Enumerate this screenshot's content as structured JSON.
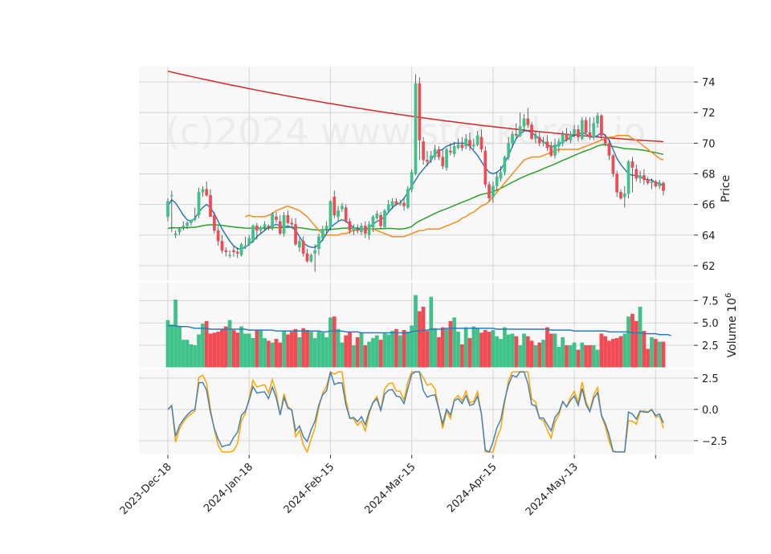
{
  "watermark": "(c)2024 www.stockdrop.io",
  "colors": {
    "up": "#3ec28a",
    "down": "#f04b55",
    "ma_short": "#2e7bb4",
    "ma_mid": "#f28e1c",
    "ma_long": "#2ca02c",
    "ma_200": "#d62728",
    "osc_fast": "#4682b4",
    "osc_slow": "#ffa500"
  },
  "chart_data": [
    {
      "type": "candlestick",
      "panel": "price",
      "ylabel": "Price",
      "ylim": [
        61,
        75
      ],
      "yticks": [
        62,
        64,
        66,
        68,
        70,
        72,
        74
      ],
      "x_tick_labels": [
        "2023-Dec-18",
        "2024-Jan-18",
        "2024-Feb-15",
        "2024-Mar-15",
        "2024-Apr-15",
        "2024-May-13"
      ],
      "x_tick_index": [
        0,
        21,
        42,
        63,
        84,
        105
      ],
      "open": [
        65.2,
        66.6,
        64.0,
        64.2,
        64.5,
        64.6,
        64.8,
        65.0,
        65.3,
        66.8,
        67.0,
        66.6,
        65.3,
        64.3,
        63.6,
        63.0,
        62.7,
        63.0,
        62.9,
        62.7,
        63.2,
        63.4,
        63.6,
        64.6,
        64.3,
        64.5,
        64.6,
        64.5,
        65.2,
        64.9,
        64.1,
        65.3,
        64.8,
        64.7,
        63.2,
        63.6,
        62.8,
        62.3,
        62.8,
        63.1,
        63.8,
        64.4,
        64.5,
        66.5,
        65.2,
        65.7,
        65.8,
        64.9,
        64.3,
        64.4,
        64.2,
        64.6,
        64.0,
        64.5,
        65.1,
        65.3,
        64.5,
        65.6,
        65.9,
        66.2,
        66.0,
        66.1,
        65.8,
        67.0,
        68.0,
        73.9,
        70.1,
        68.9,
        68.9,
        69.1,
        69.6,
        69.1,
        68.4,
        69.5,
        69.3,
        69.7,
        69.9,
        69.8,
        70.2,
        69.8,
        69.9,
        70.4,
        69.5,
        67.3,
        66.5,
        67.2,
        67.7,
        68.1,
        69.1,
        70.0,
        70.6,
        70.5,
        71.1,
        71.6,
        71.2,
        70.3,
        70.4,
        70.0,
        70.1,
        69.8,
        69.2,
        69.8,
        70.0,
        70.6,
        70.2,
        70.6,
        70.9,
        70.3,
        71.5,
        70.7,
        70.4,
        71.3,
        71.8,
        70.4,
        70.0,
        69.2,
        68.0,
        66.8,
        66.5,
        66.7,
        68.8,
        68.3,
        67.7,
        67.9,
        67.6,
        67.4,
        67.5,
        67.2,
        67.4
      ],
      "high": [
        66.4,
        66.9,
        64.3,
        64.5,
        64.9,
        64.9,
        65.0,
        65.8,
        67.1,
        67.2,
        67.5,
        67.0,
        65.5,
        64.6,
        64.0,
        63.2,
        63.0,
        63.3,
        63.2,
        63.5,
        63.9,
        64.0,
        64.7,
        64.8,
        64.6,
        64.9,
        64.7,
        65.5,
        65.5,
        65.3,
        65.5,
        65.6,
        65.1,
        65.1,
        63.8,
        63.9,
        63.1,
        62.8,
        63.4,
        64.1,
        64.6,
        64.9,
        66.3,
        66.9,
        65.9,
        66.1,
        66.0,
        65.1,
        64.7,
        64.7,
        64.8,
        64.9,
        64.9,
        65.3,
        65.6,
        65.5,
        65.7,
        66.3,
        66.4,
        66.4,
        66.3,
        66.4,
        67.2,
        68.3,
        74.5,
        74.3,
        70.4,
        69.5,
        69.5,
        69.9,
        69.8,
        69.6,
        69.7,
        70.0,
        70.1,
        70.3,
        70.4,
        70.6,
        70.7,
        70.3,
        70.8,
        70.9,
        69.8,
        67.5,
        67.5,
        68.1,
        68.5,
        69.2,
        70.4,
        70.8,
        71.3,
        72.0,
        71.9,
        72.3,
        71.4,
        70.8,
        70.7,
        70.4,
        70.5,
        70.1,
        70.3,
        70.3,
        70.8,
        71.0,
        70.8,
        71.2,
        71.2,
        71.7,
        71.7,
        71.7,
        71.7,
        72.0,
        71.9,
        70.6,
        70.2,
        69.3,
        68.2,
        67.0,
        67.2,
        68.9,
        69.1,
        68.6,
        68.2,
        68.3,
        67.8,
        67.7,
        67.6,
        67.6,
        67.5
      ],
      "low": [
        64.9,
        64.2,
        63.8,
        64.0,
        64.3,
        64.4,
        64.6,
        64.9,
        65.1,
        66.5,
        66.5,
        65.3,
        64.1,
        63.3,
        62.8,
        62.6,
        62.5,
        62.6,
        62.5,
        62.6,
        63.1,
        63.3,
        63.5,
        63.7,
        64.1,
        64.3,
        64.3,
        64.3,
        64.8,
        64.0,
        63.9,
        64.7,
        64.5,
        63.3,
        62.9,
        62.6,
        62.2,
        62.2,
        61.6,
        62.7,
        63.6,
        64.1,
        64.3,
        65.1,
        64.9,
        65.5,
        64.8,
        64.1,
        64.0,
        64.1,
        64.0,
        63.8,
        63.7,
        64.2,
        65.0,
        64.4,
        64.5,
        65.5,
        65.7,
        65.9,
        65.9,
        65.6,
        65.7,
        66.8,
        67.9,
        68.9,
        68.6,
        68.5,
        68.7,
        68.9,
        68.9,
        68.3,
        68.2,
        69.2,
        69.1,
        69.6,
        69.5,
        69.6,
        69.5,
        69.6,
        69.8,
        69.4,
        67.1,
        66.2,
        66.1,
        66.9,
        67.5,
        67.9,
        68.9,
        69.7,
        70.3,
        70.4,
        70.8,
        71.0,
        70.2,
        70.0,
        69.8,
        69.8,
        69.5,
        69.1,
        69.0,
        69.4,
        69.8,
        70.1,
        70.0,
        70.4,
        70.1,
        70.2,
        70.6,
        70.2,
        70.2,
        71.0,
        70.2,
        69.8,
        68.9,
        67.8,
        66.5,
        66.3,
        65.8,
        66.4,
        66.8,
        67.5,
        67.4,
        67.3,
        67.3,
        67.0,
        67.1,
        67.0,
        66.6
      ],
      "close": [
        66.2,
        66.6,
        64.1,
        64.4,
        64.6,
        64.8,
        65.0,
        65.1,
        66.8,
        67.0,
        66.6,
        65.2,
        64.3,
        63.6,
        63.0,
        62.9,
        62.7,
        62.9,
        62.8,
        63.4,
        63.3,
        63.8,
        64.6,
        64.3,
        64.5,
        64.7,
        64.5,
        65.4,
        65.0,
        64.1,
        65.3,
        64.8,
        64.7,
        63.4,
        63.6,
        62.8,
        62.3,
        62.7,
        63.0,
        63.9,
        64.4,
        64.6,
        66.2,
        65.3,
        65.6,
        65.9,
        64.9,
        64.3,
        64.5,
        64.3,
        64.6,
        64.1,
        64.7,
        65.2,
        65.4,
        64.6,
        65.6,
        66.0,
        66.2,
        66.0,
        66.1,
        65.9,
        67.0,
        68.1,
        73.9,
        70.2,
        68.9,
        68.8,
        69.2,
        69.6,
        69.1,
        68.5,
        69.6,
        69.4,
        69.8,
        69.9,
        69.7,
        70.3,
        69.8,
        69.9,
        70.5,
        69.6,
        67.3,
        66.4,
        67.2,
        67.8,
        68.1,
        69.1,
        70.0,
        70.6,
        70.5,
        71.1,
        71.6,
        71.2,
        70.3,
        70.5,
        70.0,
        70.1,
        69.7,
        69.2,
        69.9,
        70.1,
        70.6,
        70.2,
        70.6,
        70.9,
        70.4,
        71.5,
        70.7,
        70.4,
        71.3,
        71.8,
        70.5,
        70.0,
        69.2,
        68.0,
        66.8,
        66.4,
        66.7,
        68.8,
        68.4,
        67.7,
        67.9,
        67.6,
        67.4,
        67.5,
        67.2,
        67.4,
        66.9
      ],
      "ma_short": [
        65.9,
        66.3,
        66.1,
        65.7,
        65.3,
        65.0,
        64.9,
        65.1,
        65.5,
        65.8,
        66.0,
        65.8,
        65.4,
        64.9,
        64.4,
        64.0,
        63.6,
        63.3,
        63.1,
        63.1,
        63.2,
        63.4,
        63.6,
        63.9,
        64.1,
        64.3,
        64.5,
        64.6,
        64.7,
        64.6,
        64.5,
        64.6,
        64.5,
        64.3,
        63.9,
        63.5,
        63.3,
        63.2,
        63.2,
        63.4,
        63.7,
        64.1,
        64.5,
        64.7,
        64.9,
        65.0,
        64.9,
        64.7,
        64.5,
        64.4,
        64.4,
        64.4,
        64.5,
        64.7,
        64.9,
        65.0,
        65.2,
        65.5,
        65.8,
        66.0,
        66.1,
        66.4,
        66.8,
        67.2,
        67.6,
        68.0,
        68.3,
        68.6,
        68.9,
        69.3,
        69.5,
        69.6,
        69.8,
        69.9,
        70.0,
        70.0,
        70.0,
        70.0,
        69.8,
        69.5,
        69.2,
        68.8,
        68.4,
        68.1,
        68.0,
        68.1,
        68.3,
        68.7,
        69.2,
        69.8,
        70.3,
        70.6,
        70.8,
        70.8,
        70.7,
        70.5,
        70.3,
        70.1,
        69.9,
        69.8,
        69.8,
        69.9,
        70.1,
        70.2,
        70.4,
        70.5,
        70.6,
        70.7,
        70.6,
        70.4,
        70.4,
        70.5,
        70.7,
        70.5,
        70.2,
        69.6,
        69.0,
        68.6,
        68.3,
        68.0,
        67.9,
        67.9,
        67.8,
        67.7,
        67.6,
        67.6,
        67.4,
        67.4,
        67.2
      ],
      "ma_mid": [
        65.2,
        65.3,
        65.2,
        65.2,
        65.2,
        65.2,
        65.3,
        65.4,
        65.6,
        65.7,
        65.8,
        65.9,
        65.8,
        65.7,
        65.6,
        65.4,
        65.2,
        64.9,
        64.6,
        64.3,
        64.1,
        64.0,
        64.0,
        64.0,
        64.0,
        64.1,
        64.1,
        64.2,
        64.3,
        64.3,
        64.4,
        64.4,
        64.4,
        64.4,
        64.3,
        64.2,
        64.1,
        64.0,
        63.9,
        63.9,
        63.9,
        63.9,
        64.0,
        64.1,
        64.2,
        64.3,
        64.3,
        64.4,
        64.4,
        64.4,
        64.4,
        64.5,
        64.6,
        64.7,
        64.8,
        64.9,
        65.1,
        65.2,
        65.4,
        65.5,
        65.7,
        65.9,
        66.0,
        66.2,
        66.5,
        66.8,
        67.1,
        67.4,
        67.7,
        68.0,
        68.3,
        68.6,
        68.9,
        69.0,
        69.1,
        69.1,
        69.1,
        69.2,
        69.3,
        69.4,
        69.5,
        69.6,
        69.6,
        69.6,
        69.6,
        69.6,
        69.6,
        69.7,
        69.8,
        69.9,
        70.0,
        70.1,
        70.2,
        70.3,
        70.4,
        70.4,
        70.5,
        70.5,
        70.5,
        70.5,
        70.3,
        70.2,
        70.0,
        69.8,
        69.6,
        69.4,
        69.2,
        69.0,
        68.9
      ]
    },
    {
      "type": "bar",
      "panel": "volume",
      "ylabel": "Volume  10^6",
      "ylim": [
        0,
        9.5
      ],
      "yticks": [
        2.5,
        5.0,
        7.5
      ],
      "values": [
        5.3,
        4.8,
        7.6,
        4.6,
        3.1,
        3.1,
        2.6,
        2.5,
        3.7,
        4.9,
        5.2,
        3.8,
        3.9,
        4.0,
        4.3,
        4.6,
        5.3,
        4.2,
        3.9,
        4.6,
        3.8,
        3.8,
        3.3,
        4.2,
        4.2,
        3.3,
        3.0,
        2.8,
        3.2,
        2.8,
        4.1,
        3.7,
        4.0,
        4.3,
        3.4,
        4.4,
        4.2,
        4.0,
        3.3,
        4.0,
        3.9,
        3.4,
        5.6,
        5.7,
        4.3,
        2.8,
        3.6,
        4.0,
        2.5,
        3.4,
        3.9,
        2.5,
        2.9,
        3.3,
        3.6,
        3.1,
        3.9,
        3.7,
        4.1,
        4.3,
        3.6,
        4.2,
        4.0,
        4.7,
        8.1,
        6.3,
        6.8,
        4.1,
        7.9,
        4.4,
        3.4,
        4.5,
        4.3,
        5.2,
        5.6,
        4.0,
        2.6,
        4.5,
        3.3,
        4.6,
        4.4,
        3.9,
        4.2,
        4.0,
        4.2,
        3.5,
        3.2,
        4.5,
        3.7,
        3.8,
        3.5,
        2.5,
        3.8,
        3.5,
        3.0,
        2.5,
        2.8,
        3.1,
        4.5,
        3.8,
        3.8,
        2.3,
        3.4,
        2.5,
        2.5,
        2.8,
        2.0,
        2.8,
        2.5,
        2.5,
        2.5,
        2.0,
        3.8,
        3.5,
        3.0,
        3.2,
        3.3,
        3.5,
        3.8,
        5.7,
        6.0,
        5.2,
        6.8,
        4.1,
        2.1,
        3.4,
        3.2,
        2.9,
        2.9,
        3.9,
        3.6
      ],
      "ma": [
        4.7,
        4.7,
        4.7,
        4.6,
        4.6,
        4.6,
        4.5,
        4.4,
        4.4,
        4.4,
        4.4,
        4.3,
        4.3,
        4.3,
        4.3,
        4.3,
        4.3,
        4.3,
        4.3,
        4.3,
        4.3,
        4.2,
        4.2,
        4.2,
        4.2,
        4.2,
        4.2,
        4.2,
        4.1,
        4.1,
        4.1,
        4.1,
        4.1,
        4.1,
        4.1,
        4.1,
        4.1,
        4.1,
        4.1,
        4.1,
        4.0,
        4.0,
        4.1,
        4.1,
        4.1,
        4.1,
        4.0,
        4.0,
        4.0,
        4.0,
        3.9,
        3.9,
        3.9,
        3.9,
        3.9,
        3.9,
        3.9,
        3.9,
        3.9,
        3.9,
        3.9,
        3.9,
        3.9,
        4.0,
        4.1,
        4.1,
        4.2,
        4.2,
        4.3,
        4.3,
        4.3,
        4.3,
        4.4,
        4.4,
        4.4,
        4.4,
        4.4,
        4.4,
        4.4,
        4.4,
        4.4,
        4.4,
        4.4,
        4.4,
        4.4,
        4.3,
        4.3,
        4.3,
        4.3,
        4.3,
        4.3,
        4.3,
        4.3,
        4.3,
        4.3,
        4.3,
        4.3,
        4.3,
        4.3,
        4.2,
        4.2,
        4.2,
        4.2,
        4.2,
        4.2,
        4.1,
        4.1,
        4.1,
        4.1,
        4.1,
        4.1,
        4.1,
        4.1,
        4.1,
        4.0,
        4.0,
        4.0,
        4.0,
        4.0,
        4.0,
        3.9,
        3.9,
        3.9,
        3.8,
        3.8,
        3.8,
        3.8,
        3.7,
        3.7,
        3.7,
        3.6
      ]
    },
    {
      "type": "line",
      "panel": "oscillator",
      "ylim": [
        -3.6,
        3.2
      ],
      "yticks": [
        -2.5,
        0.0,
        2.5
      ]
    }
  ]
}
